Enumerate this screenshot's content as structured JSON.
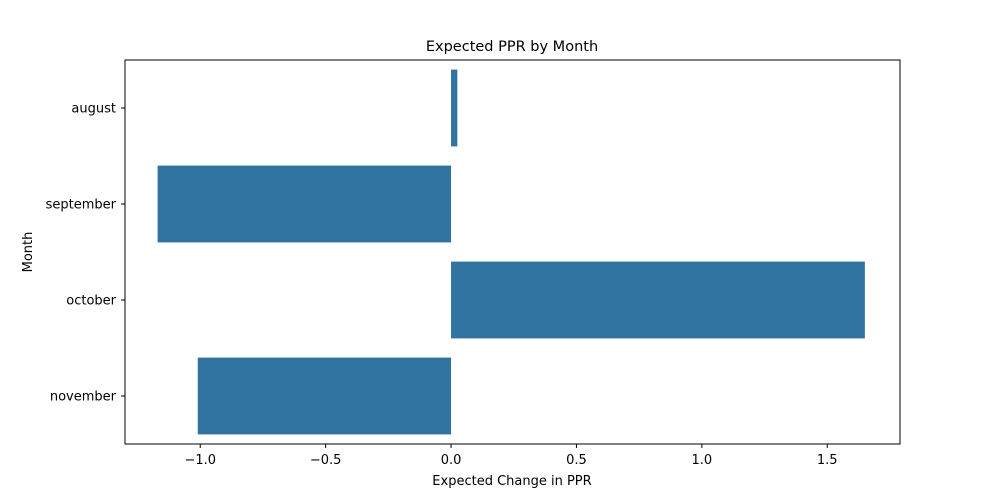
{
  "chart_data": {
    "type": "bar",
    "orientation": "horizontal",
    "title": "Expected PPR by Month",
    "xlabel": "Expected Change in PPR",
    "ylabel": "Month",
    "categories": [
      "august",
      "september",
      "october",
      "november"
    ],
    "values": [
      0.025,
      -1.17,
      1.65,
      -1.01
    ],
    "xlim": [
      -1.3,
      1.79
    ],
    "xticks": [
      -1.0,
      -0.5,
      0.0,
      0.5,
      1.0,
      1.5
    ],
    "xtick_labels": [
      "−1.0",
      "−0.5",
      "0.0",
      "0.5",
      "1.0",
      "1.5"
    ],
    "grid": false,
    "legend": "none",
    "bar_color": "#3274a1"
  }
}
